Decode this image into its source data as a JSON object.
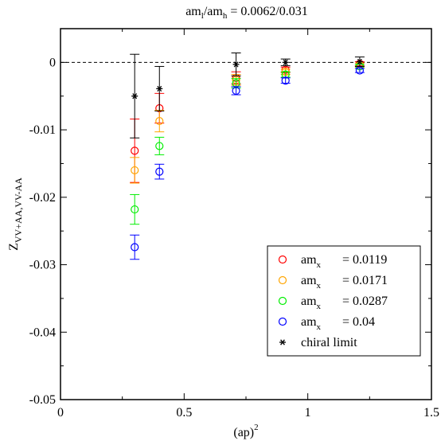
{
  "chart_data": {
    "type": "scatter",
    "title_main": "am",
    "title_sub1": "l",
    "title_mid": "/am",
    "title_sub2": "h",
    "title_tail": " = 0.0062/0.031",
    "xlabel_main": "(ap)",
    "xlabel_sup": "2",
    "ylabel_main": "Z",
    "ylabel_sub": "VV+AA,VV-AA",
    "xlim": [
      0,
      1.5
    ],
    "ylim": [
      -0.05,
      0.005
    ],
    "x_ticks": [
      0,
      0.5,
      1,
      1.5
    ],
    "x_tick_labels": [
      "0",
      "0.5",
      "1",
      "1.5"
    ],
    "y_ticks": [
      0,
      -0.01,
      -0.02,
      -0.03,
      -0.04,
      -0.05
    ],
    "y_tick_labels": [
      "0",
      "-0.01",
      "-0.02",
      "-0.03",
      "-0.04",
      "-0.05"
    ],
    "reference_line_y": 0,
    "legend_position": "lower-right",
    "series": [
      {
        "name_main": "am",
        "name_sub": "x",
        "name_value": "= 0.0119",
        "color": "#ff0000",
        "marker": "circle",
        "points": [
          {
            "x": 0.3,
            "y": -0.0131,
            "err": 0.0047
          },
          {
            "x": 0.4,
            "y": -0.0068,
            "err": 0.0022
          },
          {
            "x": 0.71,
            "y": -0.0023,
            "err": 0.0009
          },
          {
            "x": 0.91,
            "y": -0.0011,
            "err": 0.0004
          },
          {
            "x": 1.21,
            "y": -0.0002,
            "err": 0.0003
          }
        ]
      },
      {
        "name_main": "am",
        "name_sub": "x",
        "name_value": "= 0.0171",
        "color": "#ffa500",
        "marker": "circle",
        "points": [
          {
            "x": 0.3,
            "y": -0.016,
            "err": 0.0019
          },
          {
            "x": 0.4,
            "y": -0.0087,
            "err": 0.0016
          },
          {
            "x": 0.71,
            "y": -0.0026,
            "err": 0.0008
          },
          {
            "x": 0.91,
            "y": -0.0014,
            "err": 0.0004
          },
          {
            "x": 1.21,
            "y": -0.0004,
            "err": 0.0003
          }
        ]
      },
      {
        "name_main": "am",
        "name_sub": "x",
        "name_value": "= 0.0287",
        "color": "#00ee00",
        "marker": "circle",
        "points": [
          {
            "x": 0.3,
            "y": -0.0218,
            "err": 0.0022
          },
          {
            "x": 0.4,
            "y": -0.0124,
            "err": 0.0013
          },
          {
            "x": 0.71,
            "y": -0.0031,
            "err": 0.0007
          },
          {
            "x": 0.91,
            "y": -0.0018,
            "err": 0.0004
          },
          {
            "x": 1.21,
            "y": -0.0006,
            "err": 0.0003
          }
        ]
      },
      {
        "name_main": "am",
        "name_sub": "x",
        "name_value": "= 0.04",
        "color": "#0000ff",
        "marker": "circle",
        "points": [
          {
            "x": 0.3,
            "y": -0.0274,
            "err": 0.0018
          },
          {
            "x": 0.4,
            "y": -0.0162,
            "err": 0.0011
          },
          {
            "x": 0.71,
            "y": -0.0042,
            "err": 0.0006
          },
          {
            "x": 0.91,
            "y": -0.0027,
            "err": 0.0004
          },
          {
            "x": 1.21,
            "y": -0.0012,
            "err": 0.0003
          }
        ]
      },
      {
        "name_main": "chiral limit",
        "name_sub": "",
        "name_value": "",
        "color": "#000000",
        "marker": "star",
        "points": [
          {
            "x": 0.3,
            "y": -0.005,
            "err": 0.0062
          },
          {
            "x": 0.4,
            "y": -0.0039,
            "err": 0.0033
          },
          {
            "x": 0.71,
            "y": -0.0003,
            "err": 0.0017
          },
          {
            "x": 0.91,
            "y": 0.0,
            "err": 0.0005
          },
          {
            "x": 1.21,
            "y": 0.0001,
            "err": 0.0007
          }
        ]
      }
    ]
  }
}
